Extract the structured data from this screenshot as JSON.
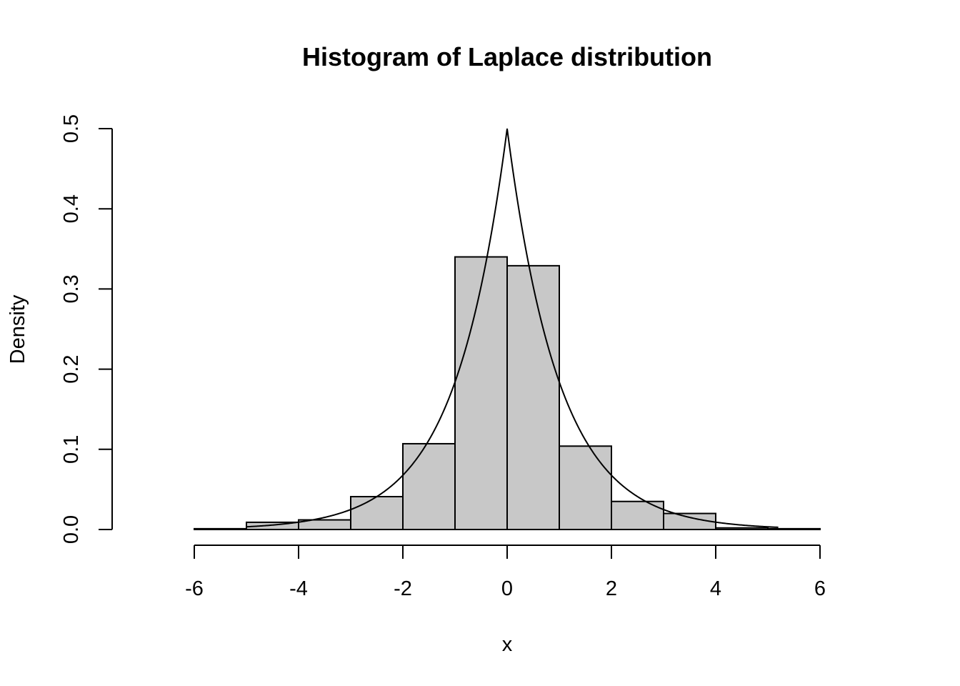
{
  "chart_data": {
    "type": "bar",
    "title": "Histogram of Laplace distribution",
    "xlabel": "x",
    "ylabel": "Density",
    "xlim": [
      -6,
      6
    ],
    "ylim": [
      0,
      0.5
    ],
    "xticks": [
      "-6",
      "-4",
      "-2",
      "0",
      "2",
      "4",
      "6"
    ],
    "yticks": [
      "0.0",
      "0.1",
      "0.2",
      "0.3",
      "0.4",
      "0.5"
    ],
    "bin_edges": [
      -6,
      -5,
      -4,
      -3,
      -2,
      -1,
      0,
      1,
      2,
      3,
      4,
      5,
      6
    ],
    "values": [
      0.001,
      0.009,
      0.012,
      0.041,
      0.107,
      0.34,
      0.329,
      0.104,
      0.035,
      0.02,
      0.002,
      0.001
    ],
    "bar_color": "#c8c8c8",
    "grid": false,
    "density_curve": {
      "type": "line",
      "function": "laplace",
      "location": 0,
      "scale": 1,
      "x_range": [
        -5,
        5.2
      ]
    }
  }
}
